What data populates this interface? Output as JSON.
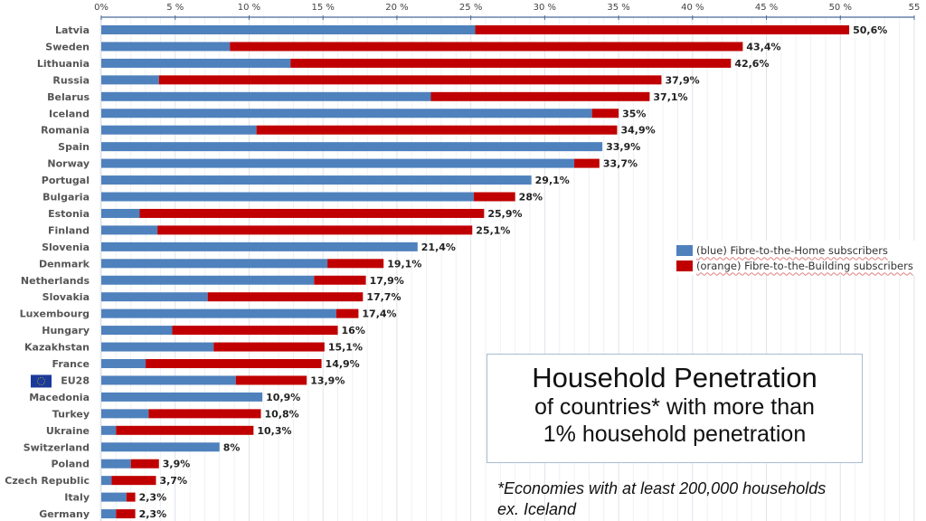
{
  "chart_data": {
    "type": "bar",
    "orientation": "horizontal",
    "stacked": true,
    "title": "Household Penetration",
    "subtitle": "of countries* with more than 1% household penetration",
    "footnote": "*Economies with at least 200,000 households ex. Iceland",
    "xlabel": "",
    "ylabel": "",
    "xlim": [
      0,
      55
    ],
    "x_ticks": [
      0,
      5,
      10,
      15,
      20,
      25,
      30,
      35,
      40,
      45,
      50,
      55
    ],
    "x_tick_labels": [
      "0%",
      "5 %",
      "10 %",
      "15 %",
      "20 %",
      "25 %",
      "30 %",
      "35 %",
      "40 %",
      "45 %",
      "50 %",
      "55"
    ],
    "grid": true,
    "legend_position": "right",
    "categories": [
      "Latvia",
      "Sweden",
      "Lithuania",
      "Russia",
      "Belarus",
      "Iceland",
      "Romania",
      "Spain",
      "Norway",
      "Portugal",
      "Bulgaria",
      "Estonia",
      "Finland",
      "Slovenia",
      "Denmark",
      "Netherlands",
      "Slovakia",
      "Luxembourg",
      "Hungary",
      "Kazakhstan",
      "France",
      "EU28",
      "Macedonia",
      "Turkey",
      "Ukraine",
      "Switzerland",
      "Poland",
      "Czech Republic",
      "Italy",
      "Germany"
    ],
    "series": [
      {
        "name": "(blue) Fibre-to-the-Home subscribers",
        "color": "#4f81bd",
        "values": [
          25.3,
          8.7,
          12.8,
          3.9,
          22.3,
          33.2,
          10.5,
          33.9,
          32.0,
          29.1,
          25.2,
          2.6,
          3.8,
          21.4,
          15.3,
          14.4,
          7.2,
          15.9,
          4.8,
          7.6,
          3.0,
          9.1,
          10.9,
          3.2,
          1.0,
          8.0,
          2.0,
          0.7,
          1.7,
          1.0
        ]
      },
      {
        "name": "(orange) Fibre-to-the-Building subscribers",
        "color": "#c00000",
        "values": [
          25.3,
          34.7,
          29.8,
          34.0,
          14.8,
          1.8,
          24.4,
          0.0,
          1.7,
          0.0,
          2.8,
          23.3,
          21.3,
          0.0,
          3.8,
          3.5,
          10.5,
          1.5,
          11.2,
          7.5,
          11.9,
          4.8,
          0.0,
          7.6,
          9.3,
          0.0,
          1.9,
          3.0,
          0.6,
          1.3
        ]
      }
    ],
    "totals": [
      50.6,
      43.4,
      42.6,
      37.9,
      37.1,
      35,
      34.9,
      33.9,
      33.7,
      29.1,
      28,
      25.9,
      25.1,
      21.4,
      19.1,
      17.9,
      17.7,
      17.4,
      16,
      15.1,
      14.9,
      13.9,
      10.9,
      10.8,
      10.3,
      8,
      3.9,
      3.7,
      2.3,
      2.3
    ],
    "data_labels": [
      "50,6%",
      "43,4%",
      "42,6%",
      "37,9%",
      "37,1%",
      "35%",
      "34,9%",
      "33,9%",
      "33,7%",
      "29,1%",
      "28%",
      "25,9%",
      "25,1%",
      "21,4%",
      "19,1%",
      "17,9%",
      "17,7%",
      "17,4%",
      "16%",
      "15,1%",
      "14,9%",
      "13,9%",
      "10,9%",
      "10,8%",
      "10,3%",
      "8%",
      "3,9%",
      "3,7%",
      "2,3%",
      "2,3%"
    ],
    "eu_flag_category": "EU28"
  },
  "legend": {
    "items": [
      {
        "label": "(blue) Fibre-to-the-Home subscribers",
        "color": "#4f81bd"
      },
      {
        "label": "(orange) Fibre-to-the-Building subscribers",
        "color": "#c00000"
      }
    ]
  },
  "title_box": {
    "line1": "Household Penetration",
    "line2": "of countries* with more than",
    "line3": "1% household penetration"
  },
  "footnote": {
    "line1": "*Economies with at least 200,000 households",
    "line2": "ex. Iceland"
  }
}
